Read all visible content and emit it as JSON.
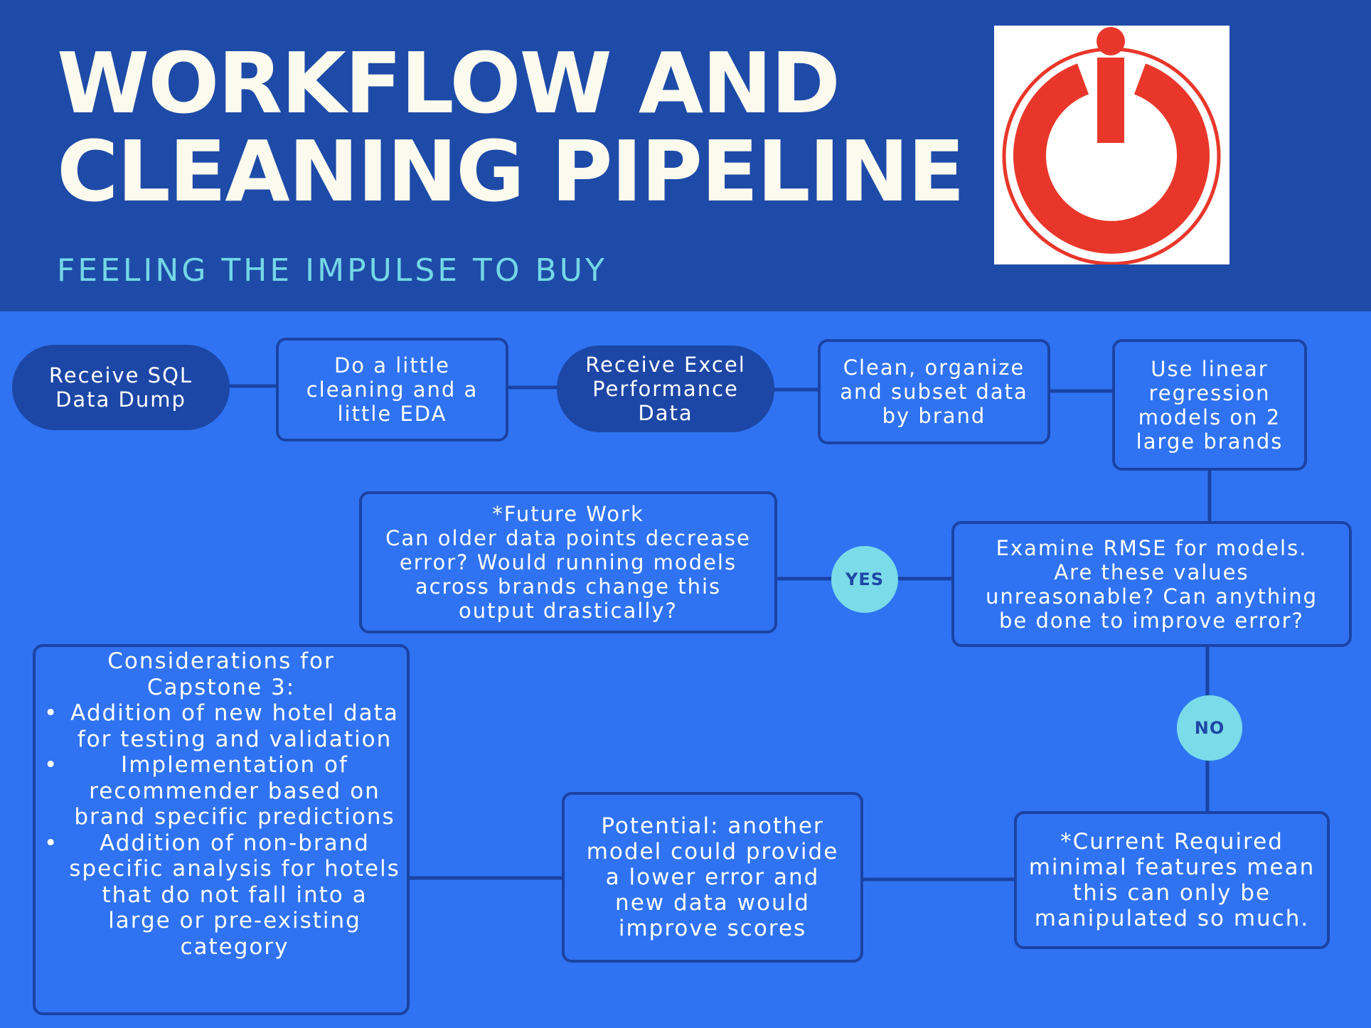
{
  "header": {
    "title": "WORKFLOW AND\nCLEANING PIPELINE",
    "subtitle": "FEELING THE IMPULSE TO BUY",
    "logo": {
      "icon": "power-button-i-logo",
      "color": "#e8372a"
    }
  },
  "colors": {
    "header_bg": "#1e4ba8",
    "body_bg": "#2f73f2",
    "box_border": "#1b43a4",
    "pill_bg": "#1d47a6",
    "decision_circle": "#7bdbe8",
    "title_text": "#fbfaee",
    "subtitle_text": "#74d7e6"
  },
  "flow": {
    "receive_sql": "Receive SQL\nData Dump",
    "little_cleaning": "Do a little\ncleaning and a\nlittle EDA",
    "receive_excel": "Receive Excel\nPerformance\nData",
    "clean_organize": "Clean, organize\nand subset data\nby brand",
    "linear_regression": "Use linear\nregression\nmodels on 2\nlarge brands",
    "examine_rmse": "Examine RMSE for models.\nAre these values\nunreasonable? Can anything\nbe done to improve error?",
    "yes_label": "YES",
    "no_label": "NO",
    "future_work": "*Future Work\nCan older data points decrease\nerror? Would running models\nacross brands change this\noutput drastically?",
    "current_required": "*Current Required\nminimal features mean\nthis can only be\nmanipulated so much.",
    "potential": "Potential: another\nmodel could provide\na lower error and\nnew data would\nimprove scores"
  },
  "considerations": {
    "heading": "Considerations for\nCapstone 3:",
    "items": [
      "Addition of new hotel data for testing and validation",
      "Implementation of recommender based on brand specific predictions",
      "Addition of non-brand specific analysis for hotels that do not fall into a large or pre-existing category"
    ]
  }
}
